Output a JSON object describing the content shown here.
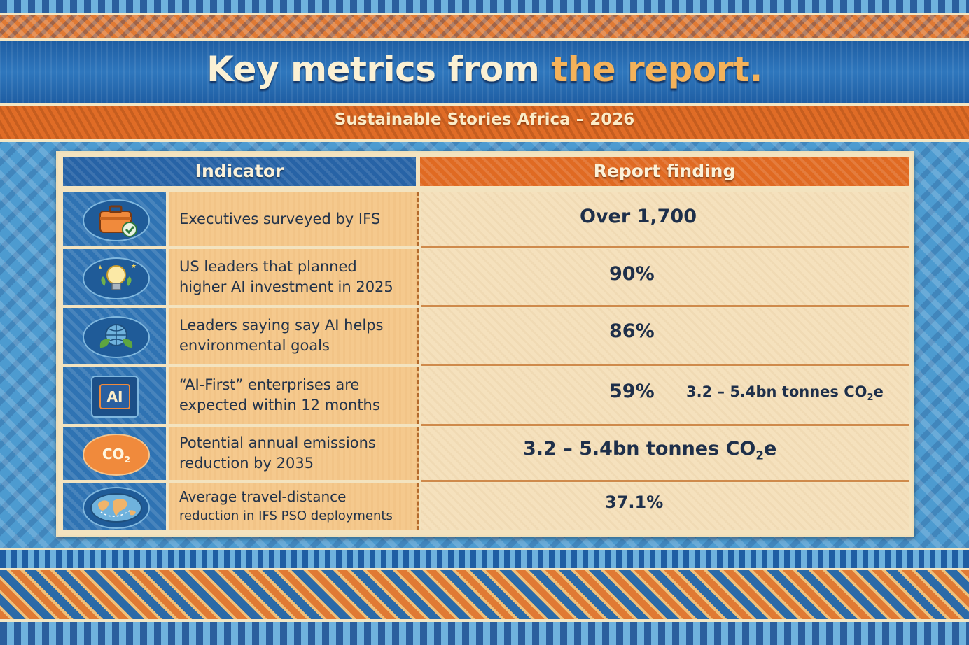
{
  "header": {
    "title_part1": "Key metrics from ",
    "title_part2": "the report.",
    "subtitle": "Sustainable Stories Africa – 2026"
  },
  "table": {
    "col_indicator": "Indicator",
    "col_finding": "Report finding",
    "rows": [
      {
        "icon": "briefcase-check-icon",
        "indicator_line1": "Executives surveyed by IFS",
        "indicator_line2": "",
        "finding": "Over 1,700"
      },
      {
        "icon": "lightbulb-icon",
        "indicator_line1": "US leaders that planned",
        "indicator_line2": "higher AI investment in 2025",
        "finding": "90%"
      },
      {
        "icon": "globe-leaves-icon",
        "indicator_line1": "Leaders saying say AI helps",
        "indicator_line2": "environmental goals",
        "finding": "86%"
      },
      {
        "icon": "ai-chip-icon",
        "icon_label": "AI",
        "indicator_line1": "“AI-First” enterprises are",
        "indicator_line2": "expected within 12 months",
        "finding": "59%",
        "finding_extra_prefix": "3.2 – 5.4bn tonnes CO",
        "finding_extra_sub": "2",
        "finding_extra_suffix": "e"
      },
      {
        "icon": "co2-cloud-icon",
        "icon_label_main": "CO",
        "icon_label_sub": "2",
        "indicator_line1": "Potential annual emissions",
        "indicator_line2": "reduction by 2035",
        "finding_prefix": "3.2 – 5.4bn tonnes CO",
        "finding_sub": "2",
        "finding_suffix": "e"
      },
      {
        "icon": "world-map-icon",
        "indicator_line1": "Average travel-distance",
        "indicator_line2": "reduction in IFS PSO deployments",
        "finding": "37.1%"
      }
    ]
  },
  "colors": {
    "blue": "#2f73b3",
    "orange": "#e06a22",
    "cream": "#f5e1bd",
    "text_dark": "#1e2f4a"
  }
}
